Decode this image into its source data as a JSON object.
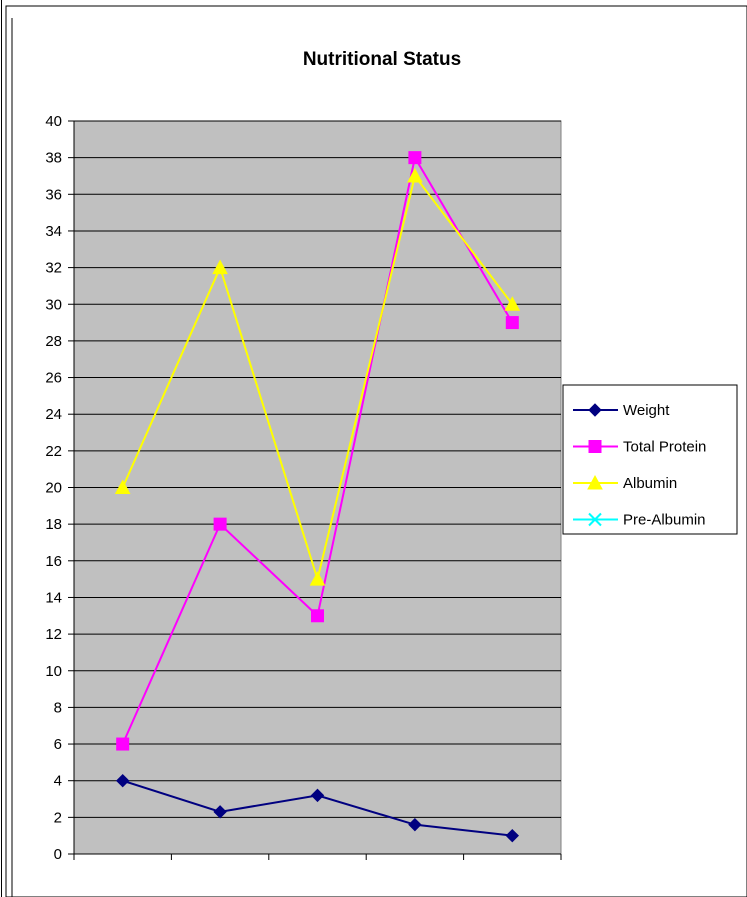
{
  "chart_data": {
    "type": "line",
    "title": "Nutritional Status",
    "xlabel": "",
    "ylabel": "",
    "ylim": [
      0,
      40
    ],
    "yticks": [
      0,
      2,
      4,
      6,
      8,
      10,
      12,
      14,
      16,
      18,
      20,
      22,
      24,
      26,
      28,
      30,
      32,
      34,
      36,
      38,
      40
    ],
    "grid": true,
    "legend_position": "right",
    "plot_background": "#c0c0c0",
    "series": [
      {
        "name": "Weight",
        "values": [
          4,
          2.3,
          3.2,
          1.6,
          1
        ],
        "color": "#000080",
        "marker": "diamond"
      },
      {
        "name": "Total Protein",
        "values": [
          6,
          18,
          13,
          38,
          29
        ],
        "color": "#ff00ff",
        "marker": "square"
      },
      {
        "name": "Albumin",
        "values": [
          20,
          32,
          15,
          37,
          30
        ],
        "color": "#ffff00",
        "marker": "triangle"
      },
      {
        "name": "Pre-Albumin",
        "values": [],
        "color": "#00ffff",
        "marker": "x"
      }
    ]
  }
}
